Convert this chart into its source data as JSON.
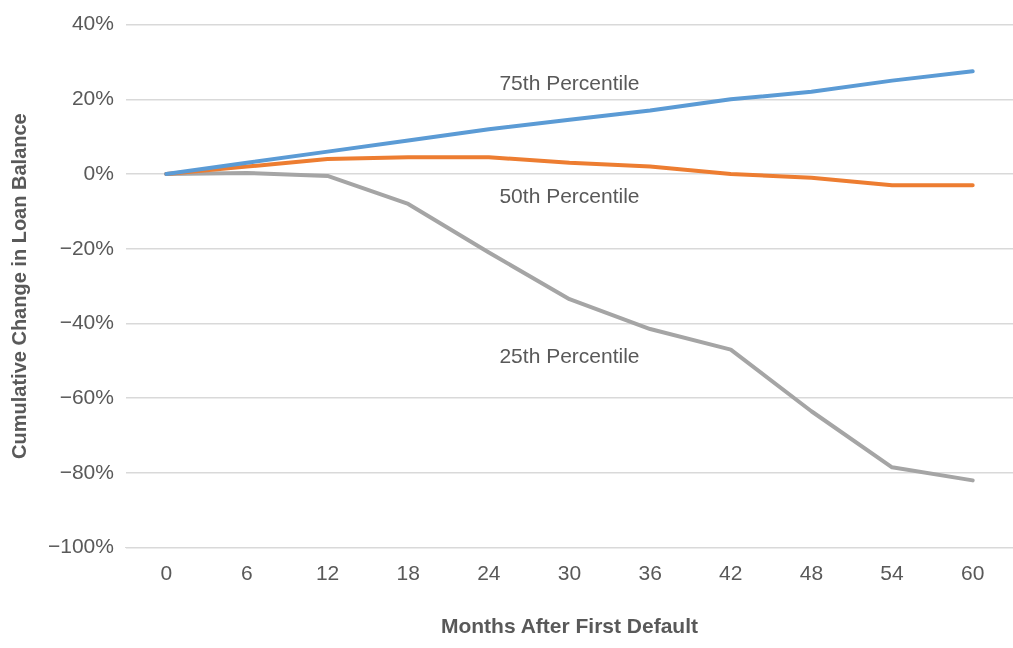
{
  "chart_data": {
    "type": "line",
    "xlabel": "Months After First Default",
    "ylabel": "Cumulative Change in Loan Balance",
    "categories": [
      "0",
      "6",
      "12",
      "18",
      "24",
      "30",
      "36",
      "42",
      "48",
      "54",
      "60"
    ],
    "ylim": [
      -100,
      40
    ],
    "yticks": [
      {
        "value": -100,
        "label": "−100%"
      },
      {
        "value": -80,
        "label": "−80%"
      },
      {
        "value": -60,
        "label": "−60%"
      },
      {
        "value": -40,
        "label": "−40%"
      },
      {
        "value": -20,
        "label": "−20%"
      },
      {
        "value": 0,
        "label": "0%"
      },
      {
        "value": 20,
        "label": "20%"
      },
      {
        "value": 40,
        "label": "40%"
      }
    ],
    "grid": "y",
    "legend": false,
    "marker": "none",
    "line_style": "solid",
    "series": [
      {
        "name": "75th Percentile",
        "color": "#5b9bd5",
        "values": [
          0,
          3,
          6,
          9,
          12,
          14.5,
          17,
          20,
          22,
          25,
          27.5
        ]
      },
      {
        "name": "50th Percentile",
        "color": "#ed7d31",
        "values": [
          0,
          2,
          4,
          4.5,
          4.5,
          3,
          2,
          0,
          -1,
          -3,
          -3
        ]
      },
      {
        "name": "25th Percentile",
        "color": "#a5a5a5",
        "values": [
          0,
          0.3,
          -0.5,
          -8,
          -21,
          -33.5,
          -41.5,
          -47,
          -63.5,
          -78.5,
          -82
        ]
      }
    ]
  }
}
